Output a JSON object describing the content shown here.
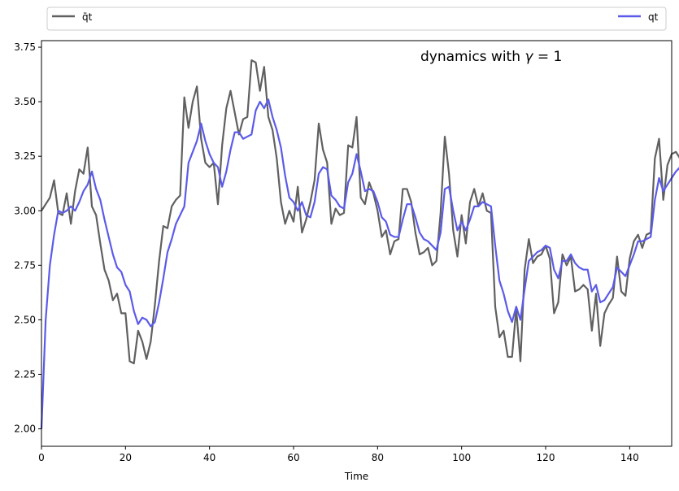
{
  "chart_data": {
    "type": "line",
    "title": "",
    "xlabel": "Time",
    "ylabel": "",
    "xlim": [
      0,
      150
    ],
    "ylim": [
      1.92,
      3.78
    ],
    "grid": false,
    "legend_placement": "top, spanning full width above the plot",
    "annotation": {
      "prefix": "dynamics with ",
      "gamma": "γ",
      "eq": " = 1"
    },
    "x_ticks": [
      0,
      20,
      40,
      60,
      80,
      100,
      120,
      140
    ],
    "x_tick_labels": [
      "0",
      "20",
      "40",
      "60",
      "80",
      "100",
      "120",
      "140"
    ],
    "y_ticks": [
      2.0,
      2.25,
      2.5,
      2.75,
      3.0,
      3.25,
      3.5,
      3.75
    ],
    "y_tick_labels": [
      "2.00",
      "2.25",
      "2.50",
      "2.75",
      "3.00",
      "3.25",
      "3.50",
      "3.75"
    ],
    "series": [
      {
        "name": "q̄t",
        "color": "#606060",
        "x_start": 0,
        "x_step": 1,
        "values": [
          3.0,
          3.03,
          3.06,
          3.14,
          2.99,
          2.98,
          3.08,
          2.94,
          3.09,
          3.19,
          3.17,
          3.29,
          3.02,
          2.98,
          2.85,
          2.73,
          2.68,
          2.59,
          2.62,
          2.53,
          2.53,
          2.31,
          2.3,
          2.45,
          2.4,
          2.32,
          2.4,
          2.57,
          2.77,
          2.93,
          2.92,
          3.02,
          3.05,
          3.07,
          3.52,
          3.38,
          3.5,
          3.57,
          3.33,
          3.22,
          3.2,
          3.22,
          3.03,
          3.3,
          3.47,
          3.55,
          3.45,
          3.35,
          3.42,
          3.43,
          3.69,
          3.68,
          3.55,
          3.66,
          3.43,
          3.37,
          3.24,
          3.04,
          2.94,
          3.0,
          2.95,
          3.11,
          2.9,
          2.96,
          3.04,
          3.14,
          3.4,
          3.28,
          3.22,
          2.94,
          3.01,
          2.98,
          2.99,
          3.3,
          3.29,
          3.43,
          3.06,
          3.03,
          3.13,
          3.08,
          3.0,
          2.88,
          2.91,
          2.8,
          2.86,
          2.87,
          3.1,
          3.1,
          3.04,
          2.9,
          2.8,
          2.81,
          2.83,
          2.75,
          2.77,
          2.99,
          3.34,
          3.17,
          2.91,
          2.79,
          2.98,
          2.85,
          3.04,
          3.1,
          3.02,
          3.08,
          3.0,
          2.99,
          2.56,
          2.42,
          2.45,
          2.33,
          2.33,
          2.55,
          2.31,
          2.73,
          2.87,
          2.76,
          2.79,
          2.8,
          2.84,
          2.78,
          2.53,
          2.58,
          2.8,
          2.75,
          2.79,
          2.63,
          2.64,
          2.66,
          2.64,
          2.45,
          2.62,
          2.38,
          2.53,
          2.57,
          2.6,
          2.79,
          2.63,
          2.61,
          2.78,
          2.86,
          2.89,
          2.83,
          2.89,
          2.9,
          3.24,
          3.33,
          3.05,
          3.21,
          3.26,
          3.27,
          3.24
        ]
      },
      {
        "name": "qt",
        "color": "#5b5bea",
        "x_start": 0,
        "x_step": 1,
        "values": [
          2.0,
          2.5,
          2.75,
          2.89,
          3.0,
          2.99,
          3.0,
          3.02,
          3.0,
          3.04,
          3.09,
          3.12,
          3.18,
          3.1,
          3.05,
          2.96,
          2.88,
          2.8,
          2.74,
          2.72,
          2.66,
          2.63,
          2.54,
          2.48,
          2.51,
          2.5,
          2.47,
          2.49,
          2.58,
          2.69,
          2.81,
          2.87,
          2.94,
          2.98,
          3.02,
          3.22,
          3.27,
          3.32,
          3.4,
          3.32,
          3.26,
          3.22,
          3.2,
          3.11,
          3.18,
          3.28,
          3.36,
          3.36,
          3.33,
          3.34,
          3.35,
          3.46,
          3.5,
          3.47,
          3.51,
          3.43,
          3.37,
          3.29,
          3.16,
          3.06,
          3.04,
          3.0,
          3.04,
          2.98,
          2.97,
          3.04,
          3.17,
          3.2,
          3.19,
          3.07,
          3.05,
          3.02,
          3.01,
          3.13,
          3.17,
          3.26,
          3.18,
          3.09,
          3.1,
          3.09,
          3.04,
          2.97,
          2.95,
          2.89,
          2.88,
          2.88,
          2.96,
          3.03,
          3.03,
          2.97,
          2.9,
          2.87,
          2.86,
          2.84,
          2.82,
          2.9,
          3.1,
          3.11,
          3.0,
          2.91,
          2.95,
          2.91,
          2.96,
          3.02,
          3.02,
          3.04,
          3.03,
          3.02,
          2.84,
          2.68,
          2.62,
          2.54,
          2.49,
          2.56,
          2.5,
          2.64,
          2.77,
          2.79,
          2.81,
          2.82,
          2.84,
          2.83,
          2.73,
          2.69,
          2.77,
          2.77,
          2.8,
          2.76,
          2.74,
          2.73,
          2.73,
          2.63,
          2.66,
          2.58,
          2.59,
          2.62,
          2.65,
          2.74,
          2.72,
          2.7,
          2.75,
          2.8,
          2.86,
          2.86,
          2.87,
          2.88,
          3.05,
          3.15,
          3.09,
          3.12,
          3.15,
          3.18,
          3.2
        ]
      }
    ]
  }
}
